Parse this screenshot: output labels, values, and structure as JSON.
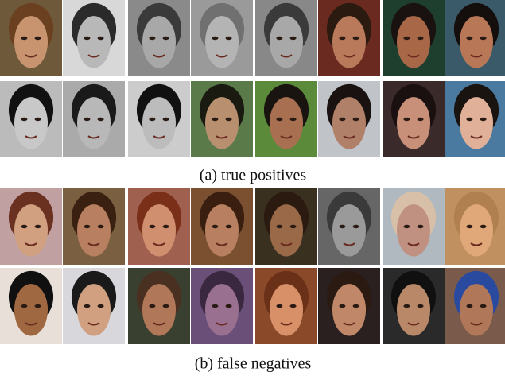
{
  "figure": {
    "captions": [
      "(a) true positives",
      "(b) false negatives"
    ]
  }
}
